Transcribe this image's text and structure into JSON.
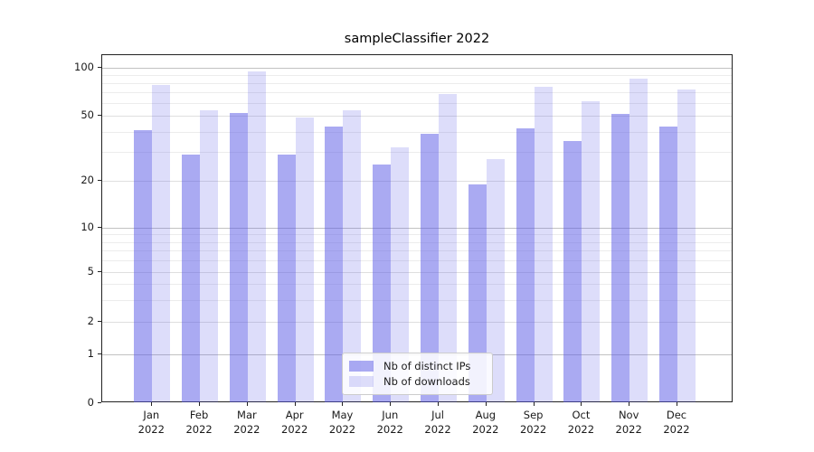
{
  "figure": {
    "title": "sampleClassifier 2022"
  },
  "chart_data": {
    "type": "bar",
    "title": "sampleClassifier 2022",
    "categories": [
      "Jan 2022",
      "Feb 2022",
      "Mar 2022",
      "Apr 2022",
      "May 2022",
      "Jun 2022",
      "Jul 2022",
      "Aug 2022",
      "Sep 2022",
      "Oct 2022",
      "Nov 2022",
      "Dec 2022"
    ],
    "series": [
      {
        "name": "Nb of distinct IPs",
        "color": "rgba(85,85,230,0.5)",
        "values": [
          41,
          29,
          52,
          29,
          43,
          25,
          39,
          19,
          42,
          35,
          51,
          43
        ]
      },
      {
        "name": "Nb of downloads",
        "color": "rgba(85,85,230,0.2)",
        "values": [
          78,
          54,
          95,
          49,
          54,
          32,
          68,
          27,
          76,
          62,
          86,
          73
        ]
      }
    ],
    "y_ticks": [
      0,
      1,
      2,
      5,
      10,
      20,
      50,
      100
    ],
    "y_scale": "symlog",
    "ylim": [
      0,
      120
    ],
    "xlabel": "",
    "ylabel": "",
    "grid": true,
    "legend_position": "lower center"
  }
}
